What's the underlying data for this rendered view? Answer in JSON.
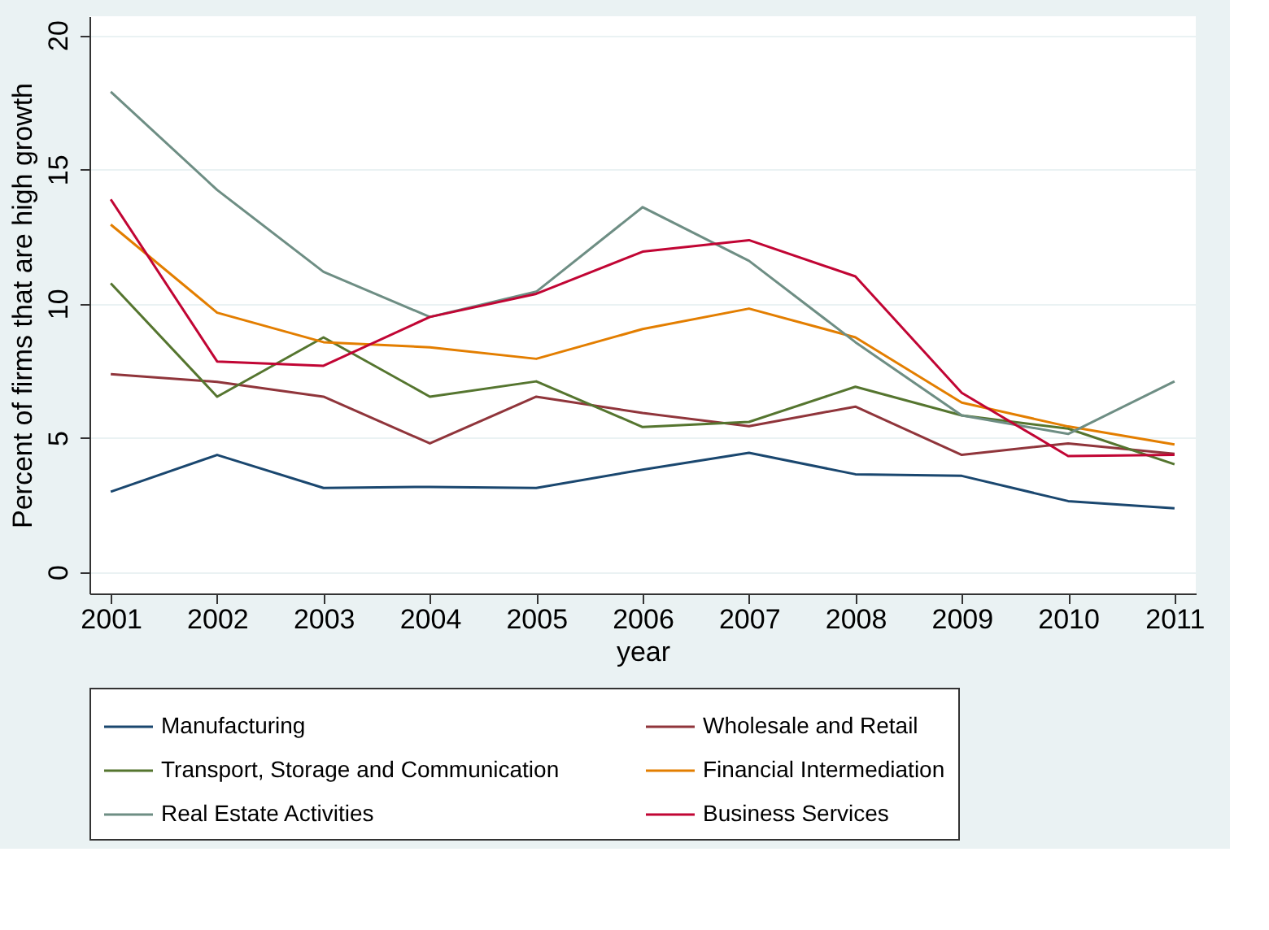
{
  "chart_data": {
    "type": "line",
    "xlabel": "year",
    "ylabel": "Percent of firms that are high growth",
    "x": [
      2001,
      2002,
      2003,
      2004,
      2005,
      2006,
      2007,
      2008,
      2009,
      2010,
      2011
    ],
    "series": [
      {
        "name": "Manufacturing",
        "color": "#1a476f",
        "values": [
          2.99,
          4.36,
          3.13,
          3.17,
          3.13,
          3.81,
          4.44,
          3.64,
          3.58,
          2.64,
          2.37
        ]
      },
      {
        "name": "Wholesale and Retail",
        "color": "#90353b",
        "values": [
          7.37,
          7.08,
          6.53,
          4.79,
          6.53,
          5.92,
          5.43,
          6.16,
          4.36,
          4.79,
          4.4
        ]
      },
      {
        "name": "Transport, Storage and Communication",
        "color": "#55752f",
        "values": [
          10.75,
          6.53,
          8.74,
          6.53,
          7.1,
          5.4,
          5.59,
          6.9,
          5.83,
          5.34,
          4.01
        ]
      },
      {
        "name": "Financial Intermediation",
        "color": "#e37e00",
        "values": [
          12.94,
          9.66,
          8.56,
          8.37,
          7.94,
          9.05,
          9.81,
          8.74,
          6.31,
          5.42,
          4.75
        ]
      },
      {
        "name": "Real Estate Activities",
        "color": "#6e8e84",
        "values": [
          17.89,
          14.23,
          11.18,
          9.5,
          10.44,
          13.59,
          11.59,
          8.56,
          5.83,
          5.14,
          7.1
        ]
      },
      {
        "name": "Business Services",
        "color": "#c10534",
        "values": [
          13.88,
          7.84,
          7.68,
          9.5,
          10.36,
          11.93,
          12.36,
          11.01,
          6.67,
          4.32,
          4.36
        ]
      }
    ],
    "xlim": [
      2000.8,
      2011.2
    ],
    "xticks": [
      2001,
      2002,
      2003,
      2004,
      2005,
      2006,
      2007,
      2008,
      2009,
      2010,
      2011
    ],
    "ylim": [
      -0.8,
      20.7
    ],
    "yticks": [
      0,
      5,
      10,
      15,
      20
    ],
    "grid": "y",
    "legend": "bottom",
    "marker": "none",
    "line_style": "solid"
  }
}
